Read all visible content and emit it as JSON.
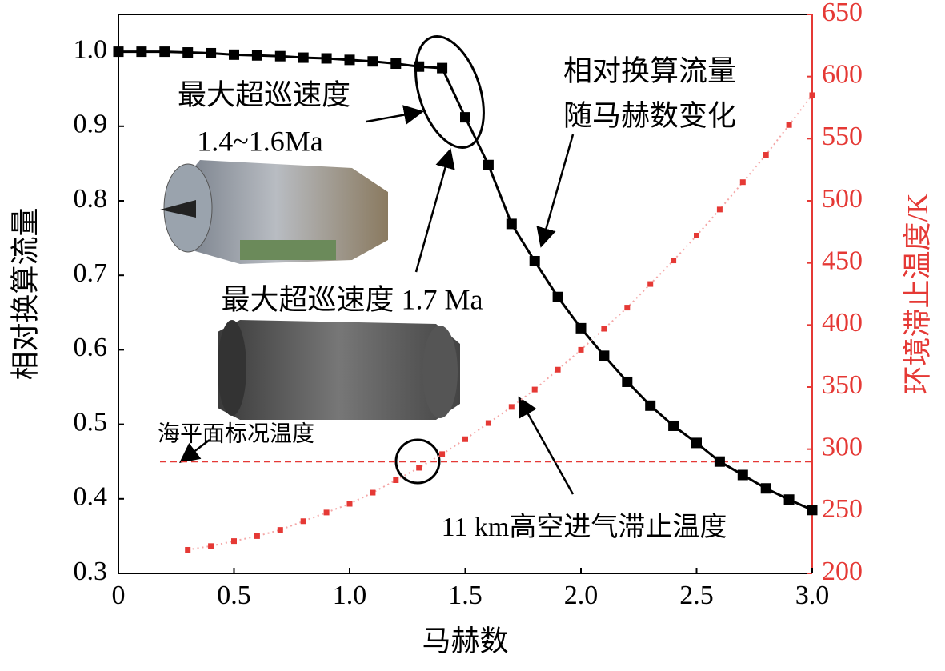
{
  "chart_data": {
    "type": "line",
    "xlabel": "马赫数",
    "ylabel": "相对换算流量",
    "y2label": "环境滞止温度/K",
    "xlim": [
      0,
      3.0
    ],
    "xticks": [
      0,
      0.5,
      {
        "value": 1,
        "label": "1.0"
      },
      1.5,
      {
        "value": 2,
        "label": "2.0"
      },
      2.5,
      {
        "value": 3,
        "label": "3.0"
      }
    ],
    "ylim": [
      0.3,
      1.05
    ],
    "yticks": [
      0.3,
      0.4,
      0.5,
      0.6,
      0.7,
      0.8,
      0.9,
      {
        "value": 1,
        "label": "1.0"
      }
    ],
    "y2lim": [
      200,
      650
    ],
    "y2ticks": [
      200,
      250,
      300,
      350,
      400,
      450,
      500,
      550,
      600,
      650
    ],
    "y2color": "#e53935",
    "series": [
      {
        "color": "#000000",
        "x": [
          0,
          0.1,
          0.2,
          0.3,
          0.4,
          0.5,
          0.6,
          0.7,
          0.8,
          0.9,
          1.0,
          1.1,
          1.2,
          1.3,
          1.4,
          1.5,
          1.6,
          1.7,
          1.8,
          1.9,
          2.0,
          2.1,
          2.2,
          2.3,
          2.4,
          2.5,
          2.6,
          2.7,
          2.8,
          2.9,
          3.0
        ],
        "values": [
          1.0,
          1.0,
          1.0,
          0.999,
          0.998,
          0.996,
          0.995,
          0.994,
          0.992,
          0.991,
          0.989,
          0.987,
          0.984,
          0.98,
          0.978,
          0.912,
          0.848,
          0.769,
          0.719,
          0.671,
          0.629,
          0.592,
          0.557,
          0.525,
          0.498,
          0.475,
          0.45,
          0.432,
          0.414,
          0.399,
          0.385
        ]
      },
      {
        "color": "#e53935",
        "axis": "y2",
        "x": [
          0.3,
          0.4,
          0.5,
          0.6,
          0.7,
          0.8,
          0.9,
          1.0,
          1.1,
          1.2,
          1.3,
          1.4,
          1.5,
          1.6,
          1.7,
          1.8,
          1.9,
          2.0,
          2.1,
          2.2,
          2.3,
          2.4,
          2.5,
          2.6,
          2.7,
          2.8,
          2.9,
          3.0
        ],
        "values": [
          219,
          222,
          226,
          230,
          235,
          242,
          249,
          256,
          265,
          275,
          285,
          296,
          308,
          321,
          334,
          348,
          364,
          380,
          397,
          414,
          433,
          452,
          472,
          493,
          515,
          537,
          561,
          585
        ]
      }
    ],
    "hline": {
      "value": 290,
      "axis": "y2",
      "color": "#e53935"
    },
    "annotations": [
      "最大超巡速度",
      "1.4~1.6Ma",
      "最大超巡速度 1.7 Ma",
      "相对换算流量",
      "随马赫数变化",
      "海平面标况温度",
      "11 km高空进气滞止温度"
    ]
  }
}
